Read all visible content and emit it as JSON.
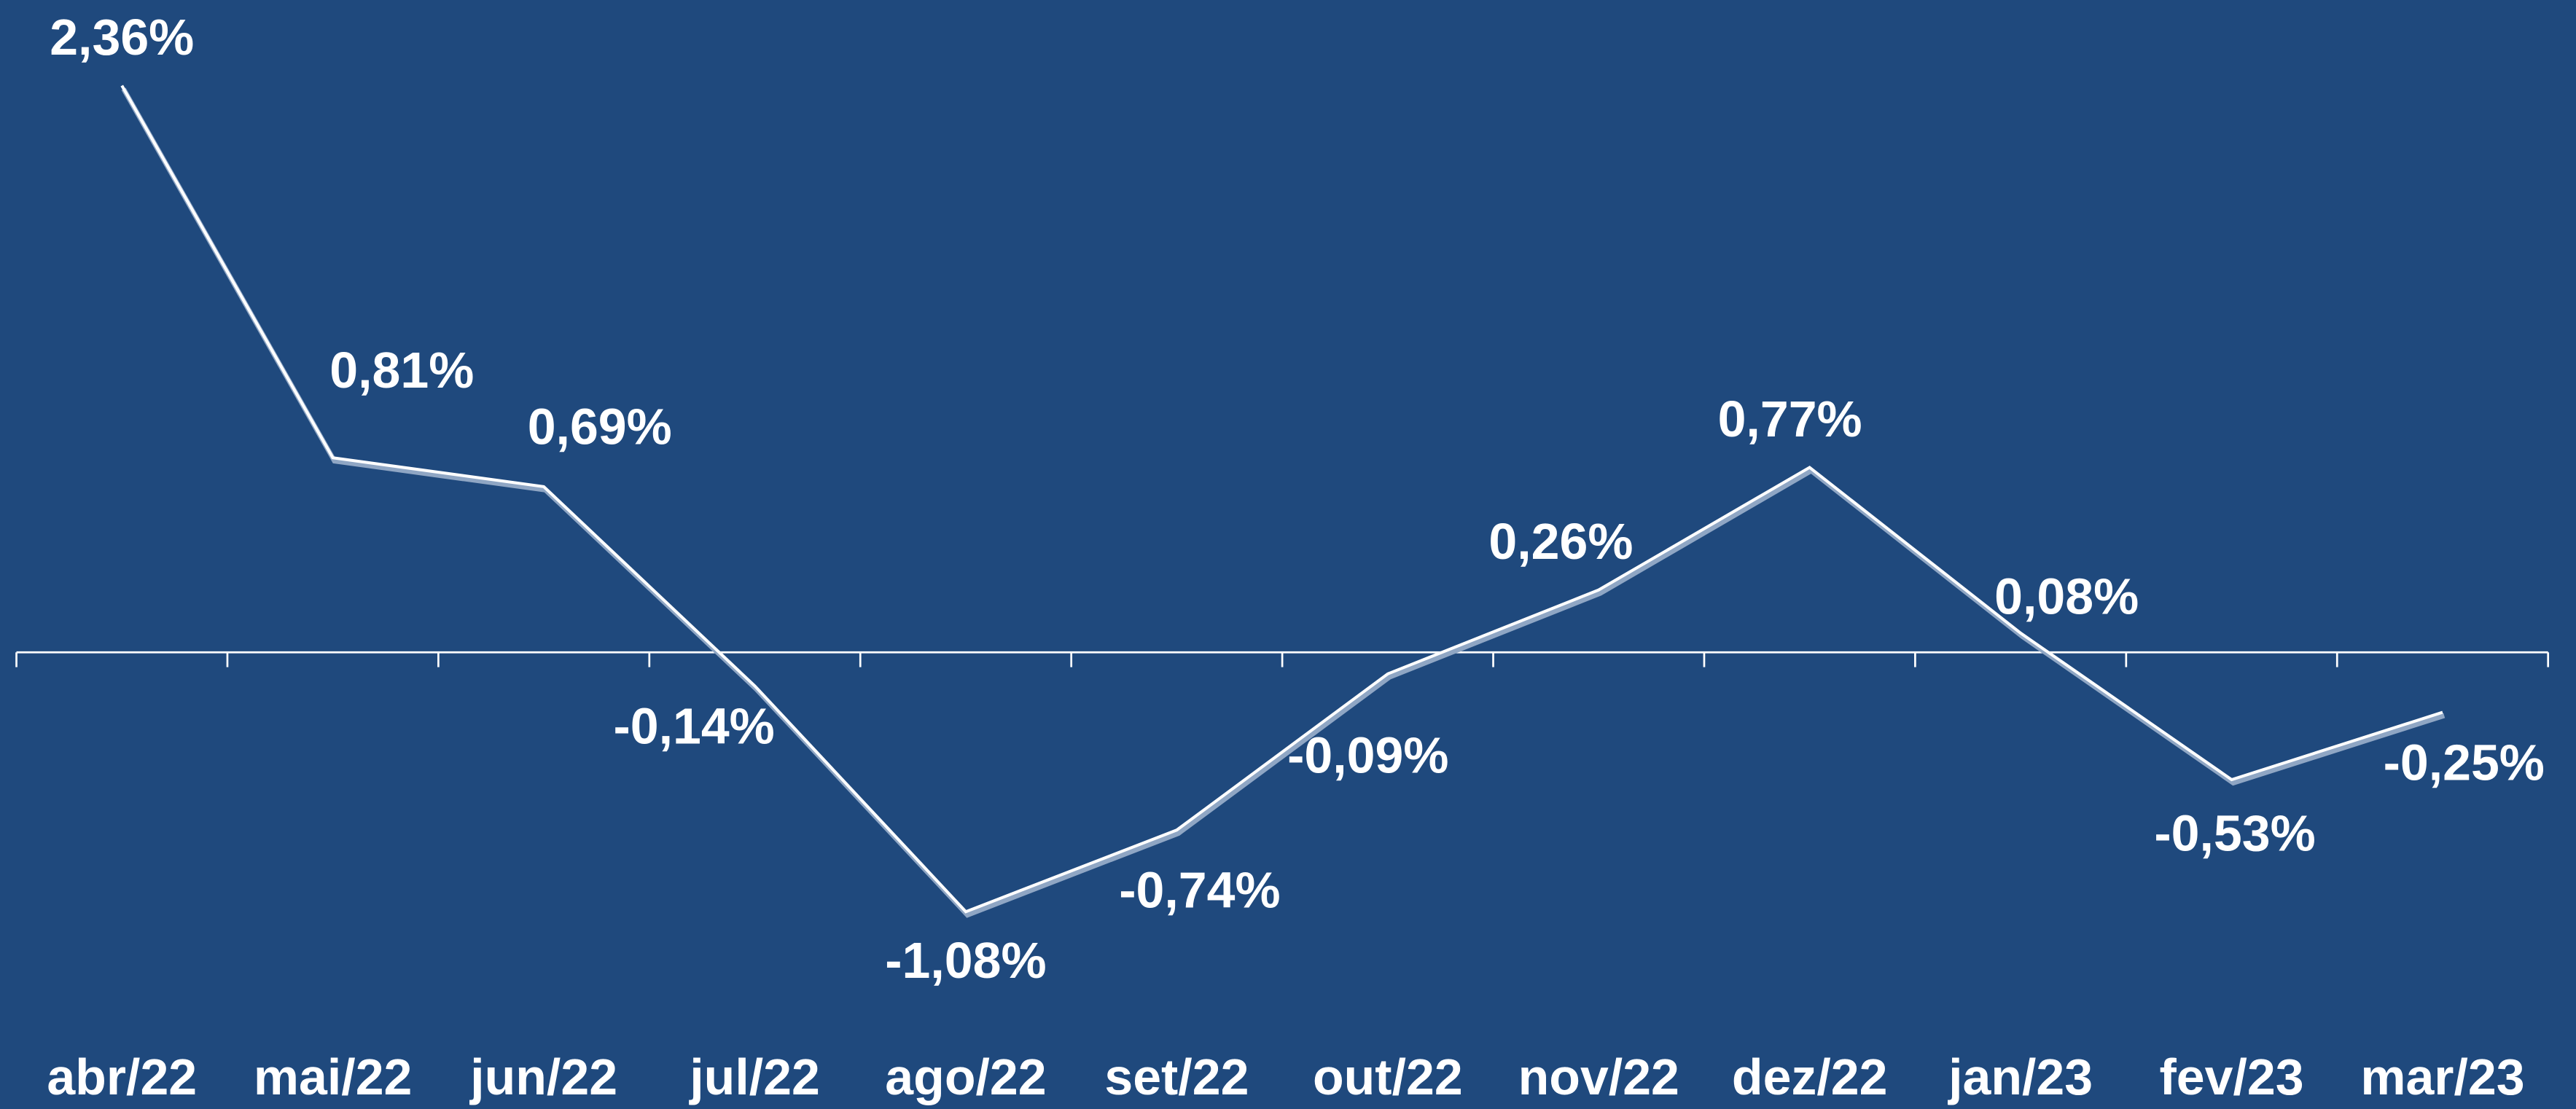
{
  "chart_data": {
    "type": "line",
    "categories": [
      "abr/22",
      "mai/22",
      "jun/22",
      "jul/22",
      "ago/22",
      "set/22",
      "out/22",
      "nov/22",
      "dez/22",
      "jan/23",
      "fev/23",
      "mar/23"
    ],
    "values": [
      2.36,
      0.81,
      0.69,
      -0.14,
      -1.08,
      -0.74,
      -0.09,
      0.26,
      0.77,
      0.08,
      -0.53,
      -0.25
    ],
    "value_labels": [
      "2,36%",
      "0,81%",
      "0,69%",
      "-0,14%",
      "-1,08%",
      "-0,74%",
      "-0,09%",
      "0,26%",
      "0,77%",
      "0,08%",
      "-0,53%",
      "-0,25%"
    ],
    "color": "#ffffff"
  }
}
